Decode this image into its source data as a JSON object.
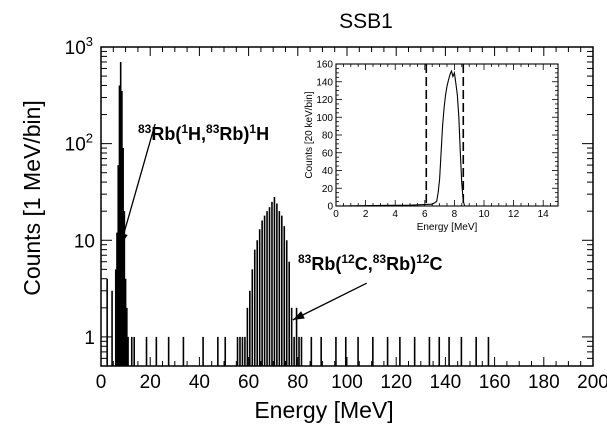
{
  "chart_data": {
    "type": "histogram",
    "title": "SSB1",
    "xlabel": "Energy [MeV]",
    "ylabel": "Counts [1 MeV/bin]",
    "xlim": [
      0,
      200
    ],
    "ylim": [
      0.5,
      1000
    ],
    "yscale": "log",
    "x_ticks": [
      0,
      20,
      40,
      60,
      80,
      100,
      120,
      140,
      160,
      180,
      200
    ],
    "y_tick_labels": [
      {
        "value": 1,
        "text": "1"
      },
      {
        "value": 10,
        "text": "10"
      },
      {
        "value": 100,
        "base": "10",
        "exp": "2"
      },
      {
        "value": 1000,
        "base": "10",
        "exp": "3"
      }
    ],
    "grid": false,
    "series": [
      {
        "x": [
          2.5,
          4.5,
          6,
          6.5,
          7,
          7.5,
          8,
          8.5,
          9,
          9.5,
          10,
          10.5,
          11,
          12.5,
          13.5,
          18.5,
          22.5,
          27.5,
          33.5,
          41.5,
          47.5,
          50.5,
          55.5,
          56.5,
          57.5,
          58.5,
          59.5,
          60.5,
          61.5,
          62.5,
          63.5,
          64.5,
          65.5,
          66.5,
          67.5,
          68.5,
          69.5,
          70.5,
          71.5,
          72.5,
          73.5,
          74.5,
          75.5,
          76.5,
          77.5,
          78.5,
          79.5,
          80.5,
          81.5,
          85.5,
          89.5,
          95.5,
          99.5,
          104.5,
          110.5,
          116.5,
          121.5,
          127.5,
          133.5,
          137.5,
          141.5,
          146.5,
          152.5,
          157.5
        ],
        "y": [
          4,
          3,
          5,
          12,
          60,
          400,
          700,
          350,
          90,
          20,
          4,
          2,
          1,
          1,
          1,
          1,
          1,
          1,
          1,
          1,
          1,
          1,
          1,
          1,
          1,
          1,
          2,
          3,
          5,
          8,
          10,
          13,
          16,
          18,
          20,
          22,
          25,
          28,
          24,
          20,
          18,
          14,
          10,
          6,
          2,
          1,
          2,
          1,
          1,
          1,
          1,
          1,
          1,
          1,
          1,
          1,
          1,
          1,
          1,
          1,
          1,
          1,
          1,
          1
        ]
      }
    ],
    "annotations": [
      {
        "parts": [
          {
            "t": "83",
            "sup": true
          },
          {
            "t": "Rb("
          },
          {
            "t": "1",
            "sup": true
          },
          {
            "t": "H,"
          },
          {
            "t": "83",
            "sup": true
          },
          {
            "t": "Rb)"
          },
          {
            "t": "1",
            "sup": true
          },
          {
            "t": "H"
          }
        ],
        "arrow_from": [
          22,
          160
        ],
        "arrow_to": [
          8,
          9
        ]
      },
      {
        "parts": [
          {
            "t": "83",
            "sup": true
          },
          {
            "t": "Rb("
          },
          {
            "t": "12",
            "sup": true
          },
          {
            "t": "C,"
          },
          {
            "t": "83",
            "sup": true
          },
          {
            "t": "Rb)"
          },
          {
            "t": "12",
            "sup": true
          },
          {
            "t": "C"
          }
        ],
        "arrow_from": [
          108,
          3.6
        ],
        "arrow_to": [
          78,
          1.5
        ]
      }
    ],
    "inset": {
      "type": "histogram",
      "xlabel": "Energy [MeV]",
      "ylabel": "Counts [20 keV/bin]",
      "xlim": [
        0,
        15
      ],
      "ylim": [
        0,
        160
      ],
      "x_ticks": [
        0,
        2,
        4,
        6,
        8,
        10,
        12,
        14
      ],
      "y_ticks": [
        0,
        20,
        40,
        60,
        80,
        100,
        120,
        140,
        160
      ],
      "gate_lines": [
        6.1,
        8.6
      ],
      "series": [
        {
          "x": [
            0,
            5.0,
            6.5,
            6.8,
            6.9,
            7.0,
            7.1,
            7.2,
            7.3,
            7.4,
            7.5,
            7.6,
            7.7,
            7.8,
            7.9,
            8.0,
            8.1,
            8.2,
            8.3,
            8.4,
            8.5,
            8.6,
            8.7,
            15
          ],
          "y": [
            0,
            1,
            2,
            5,
            15,
            30,
            60,
            90,
            110,
            125,
            135,
            142,
            148,
            152,
            146,
            150,
            138,
            125,
            100,
            60,
            25,
            5,
            0,
            0
          ]
        }
      ]
    }
  }
}
